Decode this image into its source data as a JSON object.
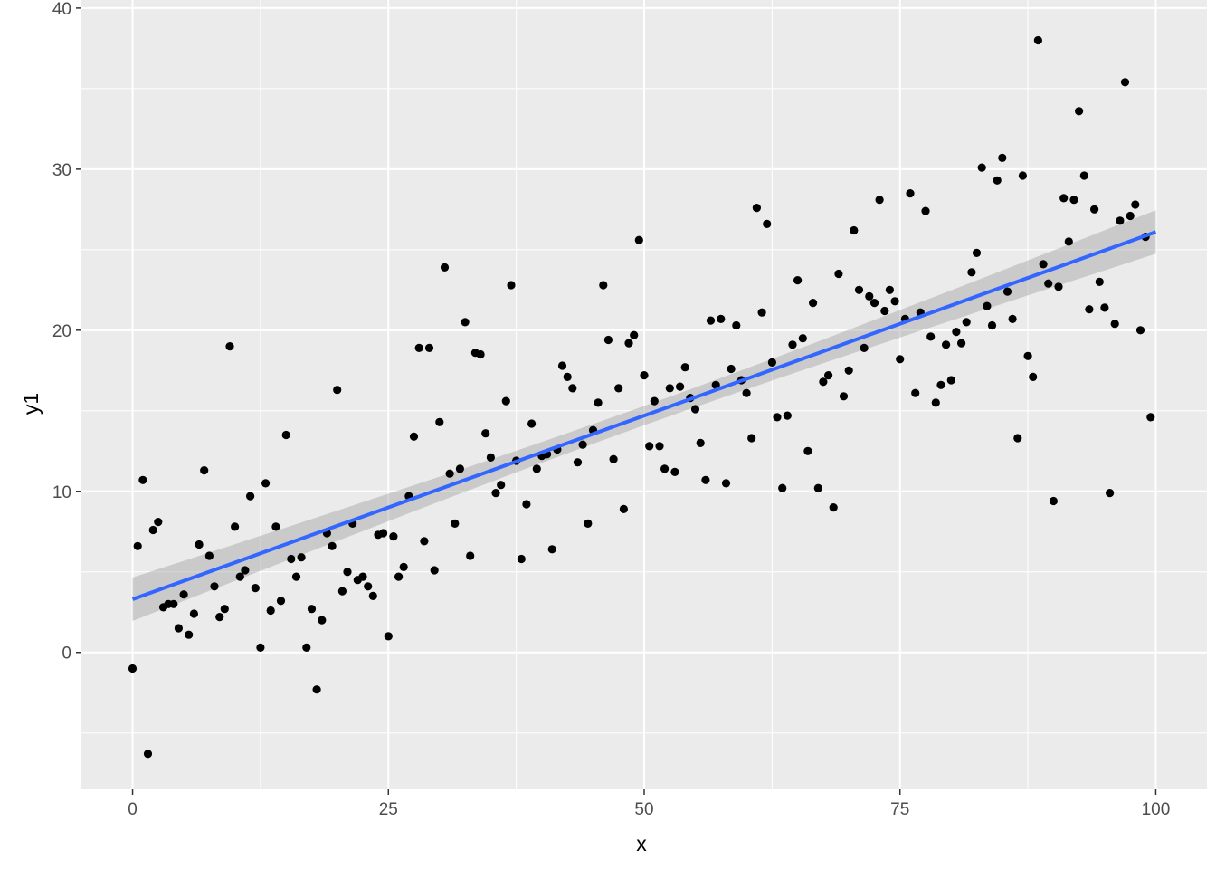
{
  "chart_data": {
    "type": "scatter",
    "title": "",
    "xlabel": "x",
    "ylabel": "y1",
    "xlim": [
      -5,
      105
    ],
    "ylim": [
      -8.5,
      40.5
    ],
    "x_ticks": [
      0,
      25,
      50,
      75,
      100
    ],
    "x_tick_labels": [
      "0",
      "25",
      "50",
      "75",
      "100"
    ],
    "y_ticks": [
      0,
      10,
      20,
      30,
      40
    ],
    "y_tick_labels": [
      "0",
      "10",
      "20",
      "30",
      "40"
    ],
    "grid": true,
    "legend": "none",
    "colors": {
      "panel_background": "#ebebeb",
      "grid": "#ffffff",
      "points": "#000000",
      "fit_line": "#3366ff",
      "confidence_band": "#999999"
    },
    "fit": {
      "method": "linear",
      "x_start": 0,
      "x_end": 100,
      "y_start": 3.3,
      "y_end": 26.1,
      "band_halfwidth_ends": 1.35,
      "band_halfwidth_center": 0.6
    },
    "series": [
      {
        "points": [
          [
            0.0,
            -1.0
          ],
          [
            0.5,
            6.6
          ],
          [
            1.0,
            10.7
          ],
          [
            1.5,
            -6.3
          ],
          [
            2.0,
            7.6
          ],
          [
            2.5,
            8.1
          ],
          [
            3.0,
            2.8
          ],
          [
            3.5,
            3.0
          ],
          [
            4.0,
            3.0
          ],
          [
            4.5,
            1.5
          ],
          [
            5.0,
            3.6
          ],
          [
            5.5,
            1.1
          ],
          [
            6.0,
            2.4
          ],
          [
            6.5,
            6.7
          ],
          [
            7.0,
            11.3
          ],
          [
            7.5,
            6.0
          ],
          [
            8.0,
            4.1
          ],
          [
            8.5,
            2.2
          ],
          [
            9.0,
            2.7
          ],
          [
            9.5,
            19.0
          ],
          [
            10.0,
            7.8
          ],
          [
            10.5,
            4.7
          ],
          [
            11.0,
            5.1
          ],
          [
            11.5,
            9.7
          ],
          [
            12.0,
            4.0
          ],
          [
            12.5,
            0.3
          ],
          [
            13.0,
            10.5
          ],
          [
            13.5,
            2.6
          ],
          [
            14.0,
            7.8
          ],
          [
            14.5,
            3.2
          ],
          [
            15.0,
            13.5
          ],
          [
            15.5,
            5.8
          ],
          [
            16.0,
            4.7
          ],
          [
            16.5,
            5.9
          ],
          [
            17.0,
            0.3
          ],
          [
            17.5,
            2.7
          ],
          [
            18.0,
            -2.3
          ],
          [
            18.5,
            2.0
          ],
          [
            19.0,
            7.4
          ],
          [
            19.5,
            6.6
          ],
          [
            20.0,
            16.3
          ],
          [
            20.5,
            3.8
          ],
          [
            21.0,
            5.0
          ],
          [
            21.5,
            8.0
          ],
          [
            22.0,
            4.5
          ],
          [
            22.5,
            4.7
          ],
          [
            23.0,
            4.1
          ],
          [
            23.5,
            3.5
          ],
          [
            24.0,
            7.3
          ],
          [
            24.5,
            7.4
          ],
          [
            25.0,
            1.0
          ],
          [
            25.5,
            7.2
          ],
          [
            26.0,
            4.7
          ],
          [
            26.5,
            5.3
          ],
          [
            27.0,
            9.7
          ],
          [
            27.5,
            13.4
          ],
          [
            28.0,
            18.9
          ],
          [
            28.5,
            6.9
          ],
          [
            29.0,
            18.9
          ],
          [
            29.5,
            5.1
          ],
          [
            30.0,
            14.3
          ],
          [
            30.5,
            23.9
          ],
          [
            31.0,
            11.1
          ],
          [
            31.5,
            8.0
          ],
          [
            32.0,
            11.4
          ],
          [
            32.5,
            20.5
          ],
          [
            33.0,
            6.0
          ],
          [
            33.5,
            18.6
          ],
          [
            34.0,
            18.5
          ],
          [
            34.5,
            13.6
          ],
          [
            35.0,
            12.1
          ],
          [
            35.5,
            9.9
          ],
          [
            36.0,
            10.4
          ],
          [
            36.5,
            15.6
          ],
          [
            37.0,
            22.8
          ],
          [
            37.5,
            11.9
          ],
          [
            38.0,
            5.8
          ],
          [
            38.5,
            9.2
          ],
          [
            39.0,
            14.2
          ],
          [
            39.5,
            11.4
          ],
          [
            40.0,
            12.2
          ],
          [
            40.5,
            12.3
          ],
          [
            41.0,
            6.4
          ],
          [
            41.5,
            12.6
          ],
          [
            42.0,
            17.8
          ],
          [
            42.5,
            17.1
          ],
          [
            43.0,
            16.4
          ],
          [
            43.5,
            11.8
          ],
          [
            44.0,
            12.9
          ],
          [
            44.5,
            8.0
          ],
          [
            45.0,
            13.8
          ],
          [
            45.5,
            15.5
          ],
          [
            46.0,
            22.8
          ],
          [
            46.5,
            19.4
          ],
          [
            47.0,
            12.0
          ],
          [
            47.5,
            16.4
          ],
          [
            48.0,
            8.9
          ],
          [
            48.5,
            19.2
          ],
          [
            49.0,
            19.7
          ],
          [
            49.5,
            25.6
          ],
          [
            50.0,
            17.2
          ],
          [
            50.5,
            12.8
          ],
          [
            51.0,
            15.6
          ],
          [
            51.5,
            12.8
          ],
          [
            52.0,
            11.4
          ],
          [
            52.5,
            16.4
          ],
          [
            53.0,
            11.2
          ],
          [
            53.5,
            16.5
          ],
          [
            54.0,
            17.7
          ],
          [
            54.5,
            15.8
          ],
          [
            55.0,
            15.1
          ],
          [
            55.5,
            13.0
          ],
          [
            56.0,
            10.7
          ],
          [
            56.5,
            20.6
          ],
          [
            57.0,
            16.6
          ],
          [
            57.5,
            20.7
          ],
          [
            58.0,
            10.5
          ],
          [
            58.5,
            17.6
          ],
          [
            59.0,
            20.3
          ],
          [
            59.5,
            16.9
          ],
          [
            60.0,
            16.1
          ],
          [
            60.5,
            13.3
          ],
          [
            61.0,
            27.6
          ],
          [
            61.5,
            21.1
          ],
          [
            62.0,
            26.6
          ],
          [
            62.5,
            18.0
          ],
          [
            63.0,
            14.6
          ],
          [
            63.5,
            10.2
          ],
          [
            64.0,
            14.7
          ],
          [
            64.5,
            19.1
          ],
          [
            65.0,
            23.1
          ],
          [
            65.5,
            19.5
          ],
          [
            66.0,
            12.5
          ],
          [
            66.5,
            21.7
          ],
          [
            67.0,
            10.2
          ],
          [
            67.5,
            16.8
          ],
          [
            68.0,
            17.2
          ],
          [
            68.5,
            9.0
          ],
          [
            69.0,
            23.5
          ],
          [
            69.5,
            15.9
          ],
          [
            70.0,
            17.5
          ],
          [
            70.5,
            26.2
          ],
          [
            71.0,
            22.5
          ],
          [
            71.5,
            18.9
          ],
          [
            72.0,
            22.1
          ],
          [
            72.5,
            21.7
          ],
          [
            73.0,
            28.1
          ],
          [
            73.5,
            21.2
          ],
          [
            74.0,
            22.5
          ],
          [
            74.5,
            21.8
          ],
          [
            75.0,
            18.2
          ],
          [
            75.5,
            20.7
          ],
          [
            76.0,
            28.5
          ],
          [
            76.5,
            16.1
          ],
          [
            77.0,
            21.1
          ],
          [
            77.5,
            27.4
          ],
          [
            78.0,
            19.6
          ],
          [
            78.5,
            15.5
          ],
          [
            79.0,
            16.6
          ],
          [
            79.5,
            19.1
          ],
          [
            80.0,
            16.9
          ],
          [
            80.5,
            19.9
          ],
          [
            81.0,
            19.2
          ],
          [
            81.5,
            20.5
          ],
          [
            82.0,
            23.6
          ],
          [
            82.5,
            24.8
          ],
          [
            83.0,
            30.1
          ],
          [
            83.5,
            21.5
          ],
          [
            84.0,
            20.3
          ],
          [
            84.5,
            29.3
          ],
          [
            85.0,
            30.7
          ],
          [
            85.5,
            22.4
          ],
          [
            86.0,
            20.7
          ],
          [
            86.5,
            13.3
          ],
          [
            87.0,
            29.6
          ],
          [
            87.5,
            18.4
          ],
          [
            88.0,
            17.1
          ],
          [
            88.5,
            38.0
          ],
          [
            89.0,
            24.1
          ],
          [
            89.5,
            22.9
          ],
          [
            90.0,
            9.4
          ],
          [
            90.5,
            22.7
          ],
          [
            91.0,
            28.2
          ],
          [
            91.5,
            25.5
          ],
          [
            92.0,
            28.1
          ],
          [
            92.5,
            33.6
          ],
          [
            93.0,
            29.6
          ],
          [
            93.5,
            21.3
          ],
          [
            94.0,
            27.5
          ],
          [
            94.5,
            23.0
          ],
          [
            95.0,
            21.4
          ],
          [
            95.5,
            9.9
          ],
          [
            96.0,
            20.4
          ],
          [
            96.5,
            26.8
          ],
          [
            97.0,
            35.4
          ],
          [
            97.5,
            27.1
          ],
          [
            98.0,
            27.8
          ],
          [
            98.5,
            20.0
          ],
          [
            99.0,
            25.8
          ],
          [
            99.5,
            14.6
          ]
        ]
      }
    ]
  }
}
